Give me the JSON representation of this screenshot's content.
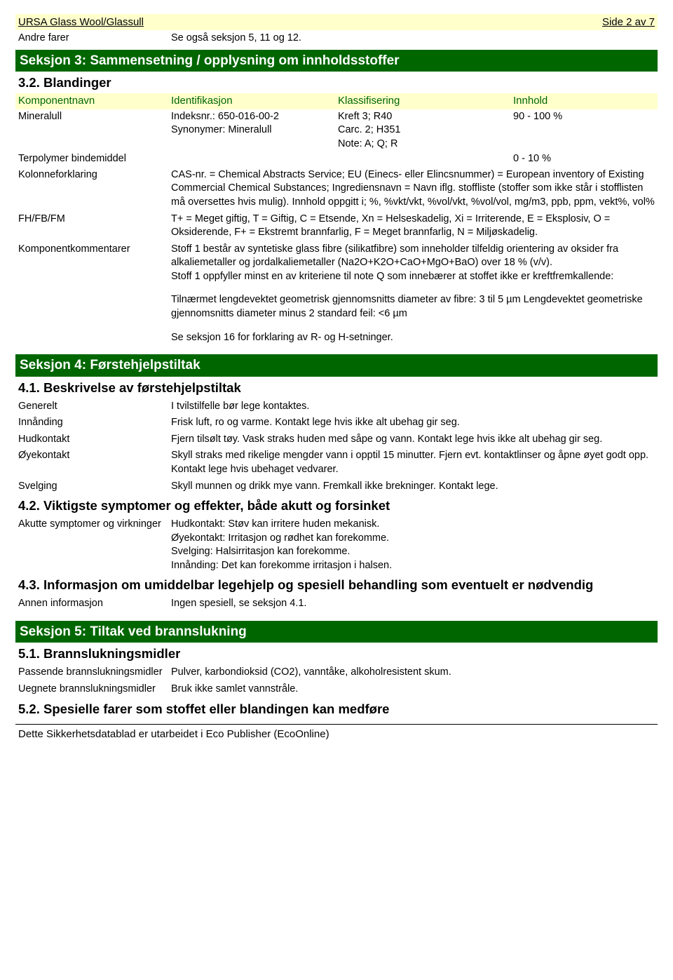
{
  "header": {
    "product": "URSA Glass Wool/Glassull",
    "page": "Side 2 av 7"
  },
  "andre_farer": {
    "label": "Andre farer",
    "value": "Se også seksjon 5, 11 og 12."
  },
  "section3": {
    "title": "Seksjon 3: Sammensetning / opplysning om innholdsstoffer",
    "sub": "3.2. Blandinger",
    "headers": {
      "c1": "Komponentnavn",
      "c2": "Identifikasjon",
      "c3": "Klassifisering",
      "c4": "Innhold"
    },
    "rows": [
      {
        "c1": "Mineralull",
        "c2a": "Indeksnr.: 650-016-00-2",
        "c2b": "Synonymer: Mineralull",
        "c3a": "Kreft 3; R40",
        "c3b": "Carc. 2; H351",
        "c3c": "Note: A; Q; R",
        "c4": "90 - 100 %"
      },
      {
        "c1": "Terpolymer bindemiddel",
        "c2": "",
        "c3": "",
        "c4": "0 - 10 %"
      }
    ],
    "kolonne": {
      "label": "Kolonneforklaring",
      "value": "CAS-nr. = Chemical Abstracts Service; EU (Einecs- eller Elincsnummer) = European inventory of Existing Commercial Chemical Substances; Ingrediensnavn = Navn iflg. stoffliste (stoffer som ikke står i stofflisten må oversettes hvis mulig). Innhold oppgitt i; %, %vkt/vkt, %vol/vkt, %vol/vol, mg/m3, ppb, ppm, vekt%, vol%"
    },
    "fh": {
      "label": "FH/FB/FM",
      "value": "T+ = Meget giftig, T = Giftig, C = Etsende, Xn = Helseskadelig, Xi = Irriterende, E = Eksplosiv, O = Oksiderende, F+ = Ekstremt brannfarlig, F = Meget brannfarlig, N = Miljøskadelig."
    },
    "komp": {
      "label": "Komponentkommentarer",
      "p1": "Stoff 1 består av syntetiske glass fibre (silikatfibre) som inneholder tilfeldig orientering av oksider fra alkaliemetaller og jordalkaliemetaller (Na2O+K2O+CaO+MgO+BaO) over 18 % (v/v).",
      "p2": "Stoff 1 oppfyller minst en av kriteriene til note Q som innebærer at stoffet ikke er kreftfremkallende:",
      "p3": "Tilnærmet lengdevektet geometrisk gjennomsnitts diameter av fibre: 3 til 5 µm Lengdevektet geometriske gjennomsnitts diameter minus 2 standard feil: <6 µm",
      "p4": "Se seksjon 16 for forklaring av R- og H-setninger."
    }
  },
  "section4": {
    "title": "Seksjon 4: Førstehjelpstiltak",
    "sub41": "4.1. Beskrivelse av førstehjelpstiltak",
    "generelt": {
      "label": "Generelt",
      "value": "I tvilstilfelle bør lege kontaktes."
    },
    "innanding": {
      "label": "Innånding",
      "value": "Frisk luft, ro og varme. Kontakt lege hvis ikke alt ubehag gir seg."
    },
    "hud": {
      "label": "Hudkontakt",
      "value": "Fjern tilsølt tøy. Vask straks huden med såpe og vann. Kontakt lege hvis ikke alt ubehag gir seg."
    },
    "oye": {
      "label": "Øyekontakt",
      "value": "Skyll straks med rikelige mengder vann i opptil 15 minutter. Fjern evt. kontaktlinser og åpne øyet godt opp. Kontakt lege hvis ubehaget vedvarer."
    },
    "svelging": {
      "label": "Svelging",
      "value": "Skyll munnen og drikk mye vann. Fremkall ikke brekninger. Kontakt lege."
    },
    "sub42": "4.2. Viktigste symptomer og effekter, både akutt og forsinket",
    "akutte": {
      "label": "Akutte symptomer og virkninger",
      "l1": "Hudkontakt: Støv kan irritere huden mekanisk.",
      "l2": "Øyekontakt: Irritasjon og rødhet kan forekomme.",
      "l3": "Svelging: Halsirritasjon kan forekomme.",
      "l4": "Innånding: Det kan forekomme irritasjon i halsen."
    },
    "sub43": "4.3. Informasjon om umiddelbar legehjelp og spesiell behandling som eventuelt er nødvendig",
    "annen": {
      "label": "Annen informasjon",
      "value": "Ingen spesiell, se seksjon 4.1."
    }
  },
  "section5": {
    "title": "Seksjon 5: Tiltak ved brannslukning",
    "sub51": "5.1. Brannslukningsmidler",
    "passende": {
      "label": "Passende brannslukningsmidler",
      "value": "Pulver, karbondioksid (CO2), vanntåke, alkoholresistent skum."
    },
    "uegnete": {
      "label": "Uegnete brannslukningsmidler",
      "value": "Bruk ikke samlet vannstråle."
    },
    "sub52": "5.2. Spesielle farer som stoffet eller blandingen kan medføre"
  },
  "footer": "Dette Sikkerhetsdatablad er utarbeidet i Eco Publisher (EcoOnline)"
}
